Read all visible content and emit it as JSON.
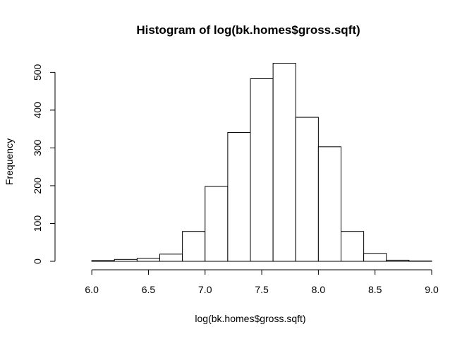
{
  "chart_data": {
    "type": "bar",
    "title": "Histogram of log(bk.homes$gross.sqft)",
    "xlabel": "log(bk.homes$gross.sqft)",
    "ylabel": "Frequency",
    "bins": [
      {
        "x0": 5.8,
        "x1": 6.0,
        "count": 0
      },
      {
        "x0": 6.0,
        "x1": 6.2,
        "count": 2
      },
      {
        "x0": 6.2,
        "x1": 6.4,
        "count": 5
      },
      {
        "x0": 6.4,
        "x1": 6.6,
        "count": 8
      },
      {
        "x0": 6.6,
        "x1": 6.8,
        "count": 19
      },
      {
        "x0": 6.8,
        "x1": 7.0,
        "count": 79
      },
      {
        "x0": 7.0,
        "x1": 7.2,
        "count": 198
      },
      {
        "x0": 7.2,
        "x1": 7.4,
        "count": 341
      },
      {
        "x0": 7.4,
        "x1": 7.6,
        "count": 483
      },
      {
        "x0": 7.6,
        "x1": 7.8,
        "count": 524
      },
      {
        "x0": 7.8,
        "x1": 8.0,
        "count": 381
      },
      {
        "x0": 8.0,
        "x1": 8.2,
        "count": 303
      },
      {
        "x0": 8.2,
        "x1": 8.4,
        "count": 79
      },
      {
        "x0": 8.4,
        "x1": 8.6,
        "count": 21
      },
      {
        "x0": 8.6,
        "x1": 8.8,
        "count": 3
      },
      {
        "x0": 8.8,
        "x1": 9.0,
        "count": 1
      }
    ],
    "xlim": [
      5.8,
      9.0
    ],
    "ylim": [
      0,
      525
    ],
    "x_ticks": [
      "6.0",
      "6.5",
      "7.0",
      "7.5",
      "8.0",
      "8.5",
      "9.0"
    ],
    "y_ticks": [
      "0",
      "100",
      "200",
      "300",
      "400",
      "500"
    ],
    "grid": false,
    "legend": "none"
  }
}
